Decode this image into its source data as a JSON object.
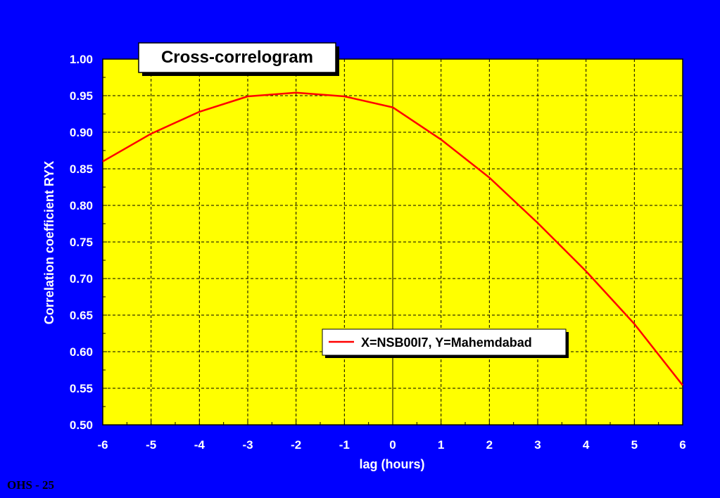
{
  "footer": {
    "slide_label": "OHS - 25"
  },
  "chart_data": {
    "type": "line",
    "title": "Cross-correlogram",
    "xlabel": "lag (hours)",
    "ylabel": "Correlation coefficient RYX",
    "xlim": [
      -6,
      6
    ],
    "ylim": [
      0.5,
      1.0
    ],
    "x_ticks": [
      -6,
      -5,
      -4,
      -3,
      -2,
      -1,
      0,
      1,
      2,
      3,
      4,
      5,
      6
    ],
    "y_ticks": [
      0.5,
      0.55,
      0.6,
      0.65,
      0.7,
      0.75,
      0.8,
      0.85,
      0.9,
      0.95,
      1.0
    ],
    "x_tick_labels": [
      "-6",
      "-5",
      "-4",
      "-3",
      "-2",
      "-1",
      "0",
      "1",
      "2",
      "3",
      "4",
      "5",
      "6"
    ],
    "y_tick_labels": [
      "0.50",
      "0.55",
      "0.60",
      "0.65",
      "0.70",
      "0.75",
      "0.80",
      "0.85",
      "0.90",
      "0.95",
      "1.00"
    ],
    "grid": true,
    "legend_position": "center-right",
    "colors": {
      "page_background": "#0000ff",
      "plot_background": "#ffff00",
      "series_line": "#ff0000",
      "axis_text": "#ffffff"
    },
    "series": [
      {
        "name": "X=NSB00I7, Y=Mahemdabad",
        "x": [
          -6,
          -5,
          -4,
          -3,
          -2,
          -1,
          0,
          1,
          2,
          3,
          4,
          5,
          6
        ],
        "y": [
          0.86,
          0.898,
          0.928,
          0.949,
          0.954,
          0.949,
          0.934,
          0.89,
          0.838,
          0.776,
          0.71,
          0.638,
          0.554
        ]
      }
    ]
  }
}
